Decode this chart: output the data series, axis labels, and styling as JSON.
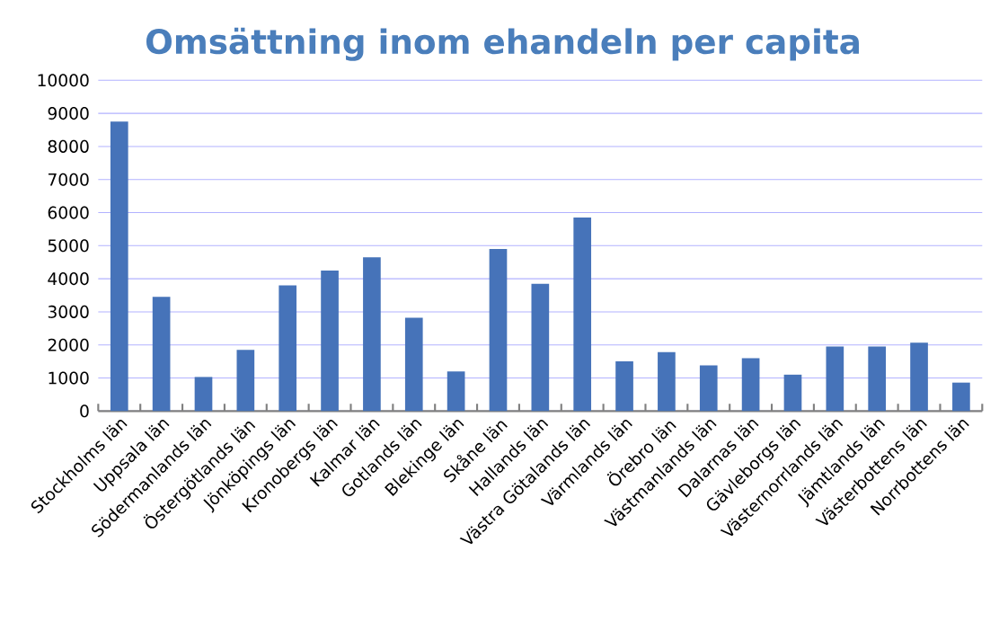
{
  "chart_data": {
    "type": "bar",
    "title": "Omsättning inom ehandeln per capita",
    "categories": [
      "Stockholms län",
      "Uppsala län",
      "Södermanlands län",
      "Östergötlands län",
      "Jönköpings län",
      "Kronobergs län",
      "Kalmar län",
      "Gotlands län",
      "Blekinge län",
      "Skåne län",
      "Hallands län",
      "Västra Götalands län",
      "Värmlands län",
      "Örebro län",
      "Västmanlands län",
      "Dalarnas län",
      "Gävleborgs län",
      "Västernorrlands län",
      "Jämtlands län",
      "Västerbottens län",
      "Norrbottens län"
    ],
    "values": [
      8750,
      3450,
      1030,
      1850,
      3800,
      4250,
      4650,
      2820,
      1200,
      4900,
      3850,
      5850,
      1500,
      1780,
      1380,
      1600,
      1100,
      1950,
      1950,
      2070,
      860
    ],
    "color": "#4673b9",
    "ylim": [
      0,
      10000
    ],
    "yticks": [
      0,
      1000,
      2000,
      3000,
      4000,
      5000,
      6000,
      7000,
      8000,
      9000,
      10000
    ],
    "grid": "y"
  }
}
